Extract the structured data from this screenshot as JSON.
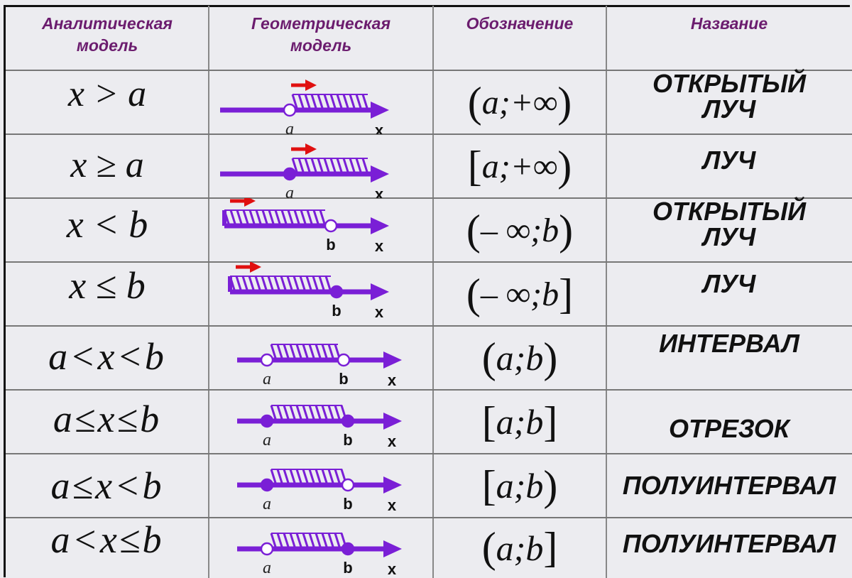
{
  "colors": {
    "header_text": "#6b1c6e",
    "axis": "#7a1fd6",
    "arrow_mark": "#e01010",
    "cell_lines": "#888888"
  },
  "headers": {
    "analytic": "Аналитическая\nмодель",
    "geometric": "Геометрическая\nмодель",
    "notation": "Обозначение",
    "name": "Название"
  },
  "rows": [
    {
      "analytic": "x > a",
      "notation": {
        "open": "(",
        "body": "a;+∞",
        "close": ")"
      },
      "name": "ОТКРЫТЫЙ\nЛУЧ",
      "geometry": {
        "hatch": "right",
        "left_point": {
          "label": "a",
          "filled": false
        },
        "right_point": null,
        "axis_label": "x"
      }
    },
    {
      "analytic": "x ≥ a",
      "notation": {
        "open": "[",
        "body": "a;+∞",
        "close": ")"
      },
      "name": "ЛУЧ",
      "geometry": {
        "hatch": "right",
        "left_point": {
          "label": "a",
          "filled": true
        },
        "right_point": null,
        "axis_label": "x"
      }
    },
    {
      "analytic": "x < b",
      "notation": {
        "open": "(",
        "body": "– ∞;b",
        "close": ")"
      },
      "name": "ОТКРЫТЫЙ\nЛУЧ",
      "geometry": {
        "hatch": "left",
        "left_point": null,
        "right_point": {
          "label": "b",
          "filled": false
        },
        "axis_label": "x"
      }
    },
    {
      "analytic": "x ≤ b",
      "notation": {
        "open": "(",
        "body": "– ∞;b",
        "close": "]"
      },
      "name": "ЛУЧ",
      "geometry": {
        "hatch": "left",
        "left_point": null,
        "right_point": {
          "label": "b",
          "filled": true
        },
        "axis_label": "x"
      }
    },
    {
      "analytic": "a<x<b",
      "notation": {
        "open": "(",
        "body": "a;b",
        "close": ")"
      },
      "name": "ИНТЕРВАЛ",
      "geometry": {
        "hatch": "between",
        "left_point": {
          "label": "a",
          "filled": false
        },
        "right_point": {
          "label": "b",
          "filled": false
        },
        "axis_label": "x"
      }
    },
    {
      "analytic": "a≤x≤b",
      "notation": {
        "open": "[",
        "body": "a;b",
        "close": "]"
      },
      "name": "ОТРЕЗОК",
      "geometry": {
        "hatch": "between",
        "left_point": {
          "label": "a",
          "filled": true
        },
        "right_point": {
          "label": "b",
          "filled": true
        },
        "axis_label": "x"
      }
    },
    {
      "analytic": "a≤x<b",
      "notation": {
        "open": "[",
        "body": "a;b",
        "close": ")"
      },
      "name": "ПОЛУИНТЕРВАЛ",
      "geometry": {
        "hatch": "between",
        "left_point": {
          "label": "a",
          "filled": true
        },
        "right_point": {
          "label": "b",
          "filled": false
        },
        "axis_label": "x"
      }
    },
    {
      "analytic": "a<x≤b",
      "notation": {
        "open": "(",
        "body": "a;b",
        "close": "]"
      },
      "name": "ПОЛУИНТЕРВАЛ",
      "geometry": {
        "hatch": "between",
        "left_point": {
          "label": "a",
          "filled": false
        },
        "right_point": {
          "label": "b",
          "filled": true
        },
        "axis_label": "x"
      }
    }
  ]
}
